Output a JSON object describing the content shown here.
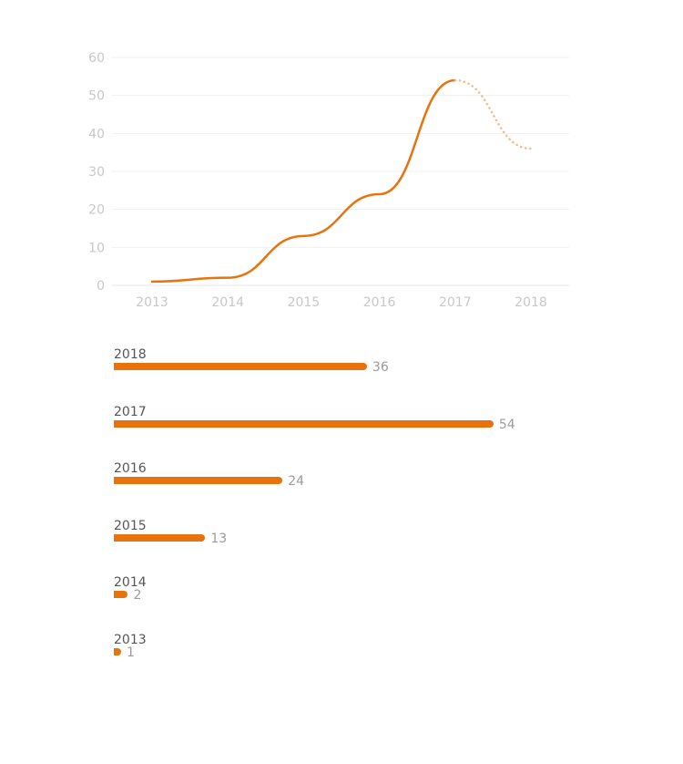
{
  "chart_data": [
    {
      "type": "line",
      "x": [
        "2013",
        "2014",
        "2015",
        "2016",
        "2017",
        "2018"
      ],
      "series": [
        {
          "values": [
            1,
            2,
            13,
            24,
            54,
            36
          ],
          "projected_from_index": 4
        }
      ],
      "ylim": [
        0,
        60
      ],
      "yticks": [
        "0",
        "10",
        "20",
        "30",
        "40",
        "50",
        "60"
      ],
      "line_style": {
        "actual": "solid",
        "projected": "dotted"
      },
      "grid": true,
      "color": "#e8720c",
      "projected_color": "#f3b98a"
    },
    {
      "type": "bar",
      "orientation": "horizontal",
      "categories": [
        "2018",
        "2017",
        "2016",
        "2015",
        "2014",
        "2013"
      ],
      "values": [
        36,
        54,
        24,
        13,
        2,
        1
      ],
      "value_labels": [
        "36",
        "54",
        "24",
        "13",
        "2",
        "1"
      ],
      "color": "#e8720c"
    }
  ]
}
